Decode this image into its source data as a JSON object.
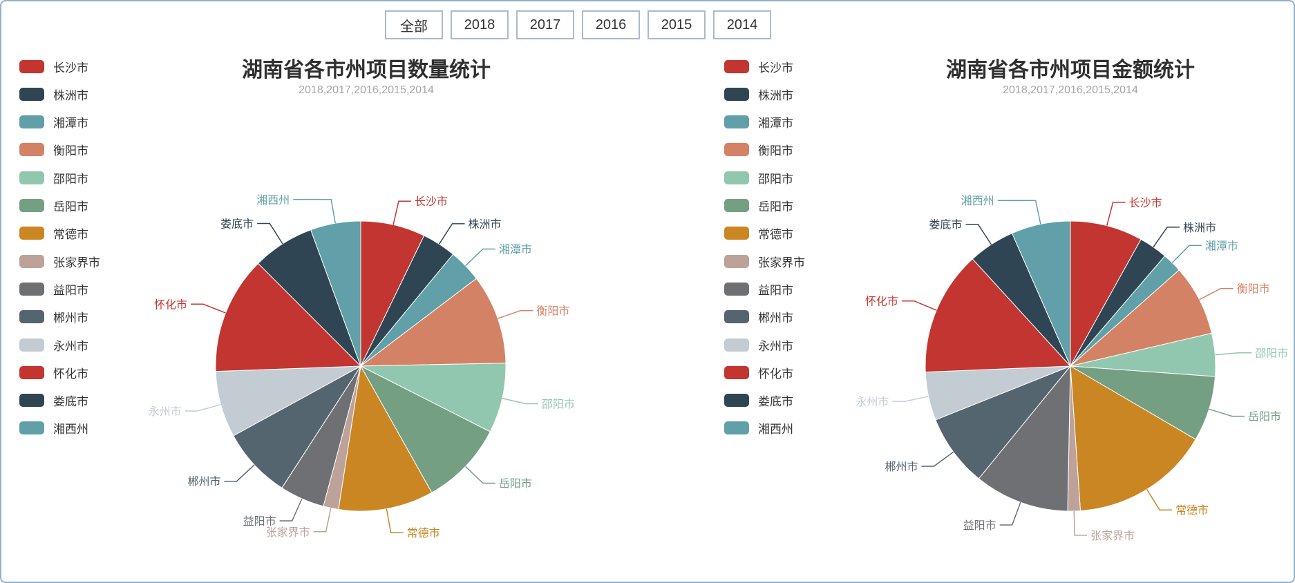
{
  "toolbar": {
    "buttons": [
      "全部",
      "2018",
      "2017",
      "2016",
      "2015",
      "2014"
    ]
  },
  "palette": [
    "#c23531",
    "#2f4554",
    "#61a0a8",
    "#d48265",
    "#91c7ae",
    "#749f83",
    "#ca8622",
    "#bda29a",
    "#6e7074",
    "#546570",
    "#c4ccd3",
    "#c23531",
    "#2f4554",
    "#61a0a8"
  ],
  "chart_data": [
    {
      "type": "pie",
      "title": "湖南省各市州项目数量统计",
      "subtitle": "2018,2017,2016,2015,2014",
      "legend_position": "left",
      "categories": [
        "长沙市",
        "株洲市",
        "湘潭市",
        "衡阳市",
        "邵阳市",
        "岳阳市",
        "常德市",
        "张家界市",
        "益阳市",
        "郴州市",
        "永州市",
        "怀化市",
        "娄底市",
        "湘西州"
      ],
      "values": [
        7.2,
        3.8,
        3.7,
        10.0,
        7.8,
        9.4,
        10.6,
        1.7,
        5.0,
        7.9,
        7.4,
        13.1,
        6.9,
        5.6
      ],
      "value_unit": "percent-of-total (estimated from slice angles; no numeric labels shown)",
      "colors": [
        "#c23531",
        "#2f4554",
        "#61a0a8",
        "#d48265",
        "#91c7ae",
        "#749f83",
        "#ca8622",
        "#bda29a",
        "#6e7074",
        "#546570",
        "#c4ccd3",
        "#c23531",
        "#2f4554",
        "#61a0a8"
      ],
      "start_angle": "12 o'clock, clockwise",
      "label_style": "outside callout labels colored per slice"
    },
    {
      "type": "pie",
      "title": "湖南省各市州项目金额统计",
      "subtitle": "2018,2017,2016,2015,2014",
      "legend_position": "left",
      "categories": [
        "长沙市",
        "株洲市",
        "湘潭市",
        "衡阳市",
        "邵阳市",
        "岳阳市",
        "常德市",
        "张家界市",
        "益阳市",
        "郴州市",
        "永州市",
        "怀化市",
        "娄底市",
        "湘西州"
      ],
      "values": [
        8.1,
        3.2,
        2.2,
        7.9,
        4.8,
        7.3,
        15.5,
        1.4,
        10.6,
        8.1,
        5.4,
        13.9,
        5.2,
        6.6
      ],
      "value_unit": "percent-of-total (estimated from slice angles; no numeric labels shown)",
      "colors": [
        "#c23531",
        "#2f4554",
        "#61a0a8",
        "#d48265",
        "#91c7ae",
        "#749f83",
        "#ca8622",
        "#bda29a",
        "#6e7074",
        "#546570",
        "#c4ccd3",
        "#c23531",
        "#2f4554",
        "#61a0a8"
      ],
      "start_angle": "12 o'clock, clockwise",
      "label_style": "outside callout labels colored per slice"
    }
  ]
}
